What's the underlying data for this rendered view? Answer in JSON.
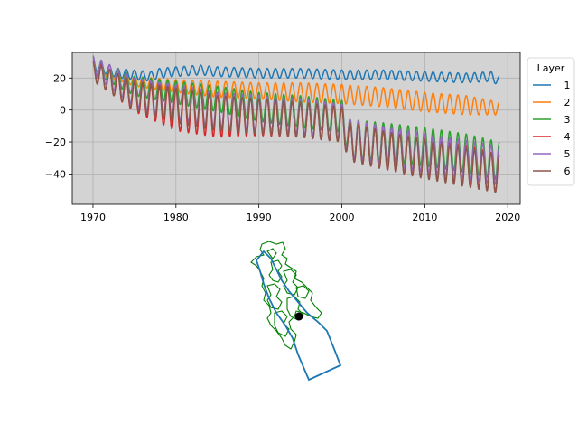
{
  "chart_data": [
    {
      "type": "line",
      "xlim": [
        1967.5,
        2021.5
      ],
      "ylim": [
        -59,
        36
      ],
      "grid": true,
      "x_ticks": [
        1970,
        1980,
        1990,
        2000,
        2010,
        2020
      ],
      "x_tick_labels": [
        "1970",
        "1980",
        "1990",
        "2000",
        "2010",
        "2020"
      ],
      "y_ticks": [
        -40,
        -20,
        0,
        20
      ],
      "y_tick_labels": [
        "−40",
        "−20",
        "0",
        "20"
      ],
      "background": "#d3d3d3",
      "legend": {
        "title": "Layer",
        "placement": "outside-right-top"
      },
      "series": [
        {
          "name": "1",
          "color": "#1f77b4",
          "x": [
            1970,
            1973,
            1977,
            1978,
            1980,
            1983,
            1985,
            1990,
            1995,
            2000,
            2005,
            2010,
            2015,
            2018,
            2019
          ],
          "y": [
            28,
            23,
            21,
            23,
            24,
            25,
            24,
            23,
            23,
            22,
            22,
            21,
            20,
            21,
            18
          ],
          "amplitude": [
            3,
            3,
            3,
            3,
            3,
            3,
            3,
            3,
            3,
            3,
            3,
            3,
            3,
            3,
            3
          ]
        },
        {
          "name": "2",
          "color": "#ff7f0e",
          "x": [
            1970,
            1975,
            1980,
            1985,
            1990,
            1995,
            2000,
            2005,
            2010,
            2015,
            2019
          ],
          "y": [
            26,
            18,
            15,
            13,
            12,
            11,
            10,
            8,
            5,
            3,
            1
          ],
          "amplitude": [
            2,
            3,
            4,
            5,
            5,
            6,
            6,
            6,
            6,
            6,
            4
          ]
        },
        {
          "name": "3",
          "color": "#2ca02c",
          "x": [
            1970,
            1975,
            1980,
            1985,
            1990,
            1995,
            2000,
            2001,
            2005,
            2010,
            2015,
            2019
          ],
          "y": [
            28,
            15,
            11,
            7,
            2,
            -1,
            -4,
            -18,
            -20,
            -23,
            -27,
            -32
          ],
          "amplitude": [
            5,
            6,
            7,
            8,
            9,
            10,
            10,
            12,
            12,
            12,
            12,
            12
          ]
        },
        {
          "name": "4",
          "color": "#d62728",
          "x": [
            1970,
            1975,
            1980,
            1985,
            1990,
            1995,
            2000,
            2001,
            2005,
            2010,
            2015,
            2019
          ],
          "y": [
            25,
            8,
            0,
            -3,
            -4,
            -6,
            -9,
            -20,
            -25,
            -30,
            -34,
            -40
          ],
          "amplitude": [
            6,
            9,
            13,
            14,
            12,
            11,
            11,
            12,
            12,
            12,
            12,
            12
          ]
        },
        {
          "name": "5",
          "color": "#9467bd",
          "x": [
            1970,
            1975,
            1980,
            1985,
            1990,
            1995,
            2000,
            2001,
            2005,
            2010,
            2015,
            2019
          ],
          "y": [
            28,
            11,
            5,
            0,
            -2,
            -4,
            -7,
            -18,
            -22,
            -27,
            -31,
            -35
          ],
          "amplitude": [
            6,
            9,
            11,
            11,
            11,
            11,
            11,
            12,
            12,
            12,
            12,
            12
          ]
        },
        {
          "name": "6",
          "color": "#8c564b",
          "x": [
            1970,
            1975,
            1980,
            1985,
            1990,
            1995,
            2000,
            2001,
            2005,
            2010,
            2015,
            2019
          ],
          "y": [
            24,
            9,
            3,
            -2,
            -4,
            -6,
            -9,
            -20,
            -25,
            -31,
            -36,
            -40
          ],
          "amplitude": [
            6,
            9,
            11,
            11,
            11,
            11,
            11,
            12,
            12,
            12,
            12,
            12
          ]
        }
      ]
    },
    {
      "type": "map",
      "boundary_color": "#1f77b4",
      "basins_color": "#008000",
      "point_color": "#000000",
      "axes_visible": false
    }
  ]
}
